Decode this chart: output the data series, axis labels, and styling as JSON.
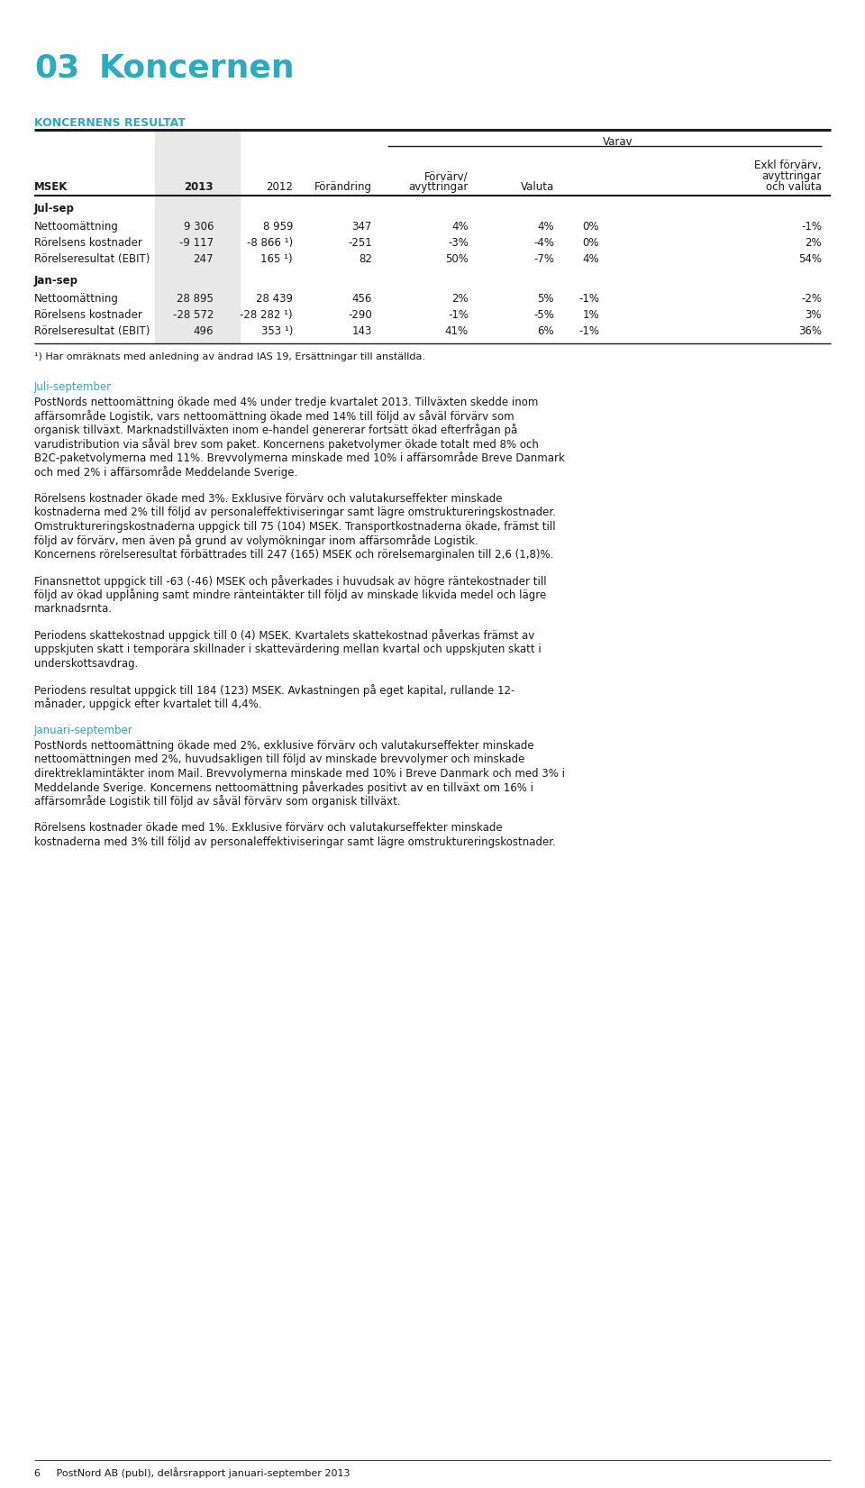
{
  "title_num": "03",
  "title_text": "Koncernen",
  "title_color": "#2AABBF",
  "section_header": "KONCERNENS RESULTAT",
  "section_header_color": "#2AABBF",
  "varav_header": "Varav",
  "jul_sep_label": "Jul-sep",
  "jan_sep_label": "Jan-sep",
  "col_headers": [
    "MSEK",
    "2013",
    "2012",
    "Förändring",
    "Förvärv/\navyttringar",
    "Valuta",
    "Exkl förvärv,\navyttringar\noch valuta"
  ],
  "rows_jul": [
    [
      "Nettoomättning",
      "9 306",
      "8 959",
      "347",
      "4%",
      "4%",
      "0%",
      "-1%"
    ],
    [
      "Rörelsens kostnader",
      "-9 117",
      "-8 866 ¹)",
      "-251",
      "-3%",
      "-4%",
      "0%",
      "2%"
    ],
    [
      "Rörelseresultat (EBIT)",
      "247",
      "165 ¹)",
      "82",
      "50%",
      "-7%",
      "4%",
      "54%"
    ]
  ],
  "rows_jan": [
    [
      "Nettoomättning",
      "28 895",
      "28 439",
      "456",
      "2%",
      "5%",
      "-1%",
      "-2%"
    ],
    [
      "Rörelsens kostnader",
      "-28 572",
      "-28 282 ¹)",
      "-290",
      "-1%",
      "-5%",
      "1%",
      "3%"
    ],
    [
      "Rörelseresultat (EBIT)",
      "496",
      "353 ¹)",
      "143",
      "41%",
      "6%",
      "-1%",
      "36%"
    ]
  ],
  "footnote": "¹) Har omräknats med anledning av ändrad IAS 19, Ersättningar till anställda.",
  "jul_sep_heading": "Juli-september",
  "jul_sep_paragraphs": [
    "PostNords nettoomättning ökade med 4% under tredje kvartalet 2013. Tillväxten skedde inom\naffärsområde Logistik, vars nettoomättning ökade med 14% till följd av såväl förvärv som\norganisk tillväxt. Marknadstillväxten inom e-handel genererar fortsätt ökad efterfrågan på\nvarudistribution via såväl brev som paket. Koncernens paketvolymer ökade totalt med 8% och\nB2C-paketvolymerna med 11%. Brevvolymerna minskade med 10% i affärsområde Breve Danmark\noch med 2% i affärsområde Meddelande Sverige.",
    "Rörelsens kostnader ökade med 3%. Exklusive förvärv och valutakurseffekter minskade\nkostnaderna med 2% till följd av personaleffektiviseringar samt lägre omstruktureringskostnader.\nOmstruktureringskostnaderna uppgick till 75 (104) MSEK. Transportkostnaderna ökade, främst till\nföljd av förvärv, men även på grund av volymökningar inom affärsområde Logistik.\nKoncernens rörelseresultat förbättrades till 247 (165) MSEK och rörelsemarginalen till 2,6 (1,8)%.",
    "Finansnettot uppgick till -63 (-46) MSEK och påverkades i huvudsak av högre räntekostnader till\nföljd av ökad upplåning samt mindre ränteintäkter till följd av minskade likvida medel och lägre\nmarknadsrnta.",
    "Periodens skattekostnad uppgick till 0 (4) MSEK. Kvartalets skattekostnad påverkas främst av\nuppskjuten skatt i temporära skillnader i skattevärdering mellan kvartal och uppskjuten skatt i\nunderskottsavdrag.",
    "Periodens resultat uppgick till 184 (123) MSEK. Avkastningen på eget kapital, rullande 12-\nmånader, uppgick efter kvartalet till 4,4%."
  ],
  "jan_sep_heading": "Januari-september",
  "jan_sep_paragraphs": [
    "PostNords nettoomättning ökade med 2%, exklusive förvärv och valutakurseffekter minskade\nnettoomättningen med 2%, huvudsakligen till följd av minskade brevvolymer och minskade\ndirektreklamintäkter inom Mail. Brevvolymerna minskade med 10% i Breve Danmark och med 3% i\nMeddelande Sverige. Koncernens nettoomättning påverkades positivt av en tillväxt om 16% i\naffärsområde Logistik till följd av såväl förvärv som organisk tillväxt.",
    "Rörelsens kostnader ökade med 1%. Exklusive förvärv och valutakurseffekter minskade\nkostnaderna med 3% till följd av personaleffektiviseringar samt lägre omstruktureringskostnader."
  ],
  "footer": "6     PostNord AB (publ), delårsrapport januari-september 2013",
  "bg_color": "#ffffff",
  "text_color": "#1a1a1a",
  "shade_color": "#e8e8e8",
  "teal_color": "#2AABBF",
  "line_color": "#1a1a1a"
}
